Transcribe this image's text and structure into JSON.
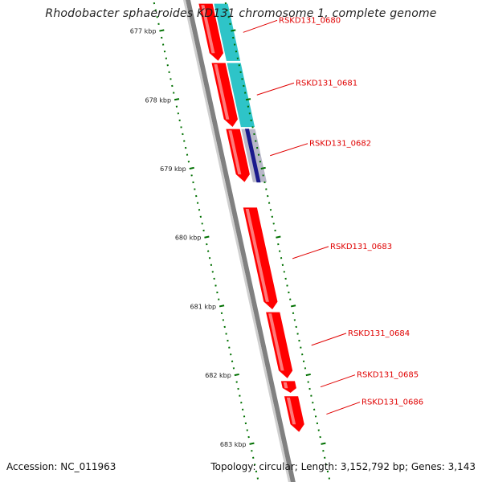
{
  "title": "Rhodobacter sphaeroides KD131 chromosome 1, complete genome",
  "accession_label": "Accession: NC_011963",
  "summary": "Topology: circular; Length: 3,152,792 bp; Genes: 3,143",
  "colors": {
    "cds": "#ff0000",
    "rna": "#2ec4c8",
    "rna_dark": "#1a1a8c",
    "backbone": "#808080",
    "ticks": "#007000",
    "label": "#e00000"
  },
  "view": {
    "start_kbp": 676.55,
    "end_kbp": 683.55
  },
  "kbp_ticks": [
    {
      "kbp": 677,
      "label": "677 kbp"
    },
    {
      "kbp": 678,
      "label": "678 kbp"
    },
    {
      "kbp": 679,
      "label": "679 kbp"
    },
    {
      "kbp": 680,
      "label": "680 kbp"
    },
    {
      "kbp": 681,
      "label": "681 kbp"
    },
    {
      "kbp": 682,
      "label": "682 kbp"
    },
    {
      "kbp": 683,
      "label": "683 kbp"
    }
  ],
  "genes": [
    {
      "label": "RSKD131_0680",
      "start_kbp": 676.6,
      "end_kbp": 677.44,
      "strand": "+",
      "rna": true
    },
    {
      "label": "RSKD131_0681",
      "start_kbp": 677.46,
      "end_kbp": 678.4,
      "strand": "+",
      "rna": true
    },
    {
      "label": "RSKD131_0682",
      "start_kbp": 678.42,
      "end_kbp": 679.2,
      "strand": "+",
      "rna": true,
      "dark": true
    },
    {
      "label": "RSKD131_0683",
      "start_kbp": 679.56,
      "end_kbp": 681.05,
      "strand": "+",
      "rna": false
    },
    {
      "label": "RSKD131_0684",
      "start_kbp": 681.08,
      "end_kbp": 682.05,
      "strand": "+",
      "rna": false
    },
    {
      "label": "RSKD131_0685",
      "start_kbp": 682.08,
      "end_kbp": 682.26,
      "strand": "+",
      "rna": false
    },
    {
      "label": "RSKD131_0686",
      "start_kbp": 682.3,
      "end_kbp": 682.83,
      "strand": "+",
      "rna": false
    }
  ]
}
